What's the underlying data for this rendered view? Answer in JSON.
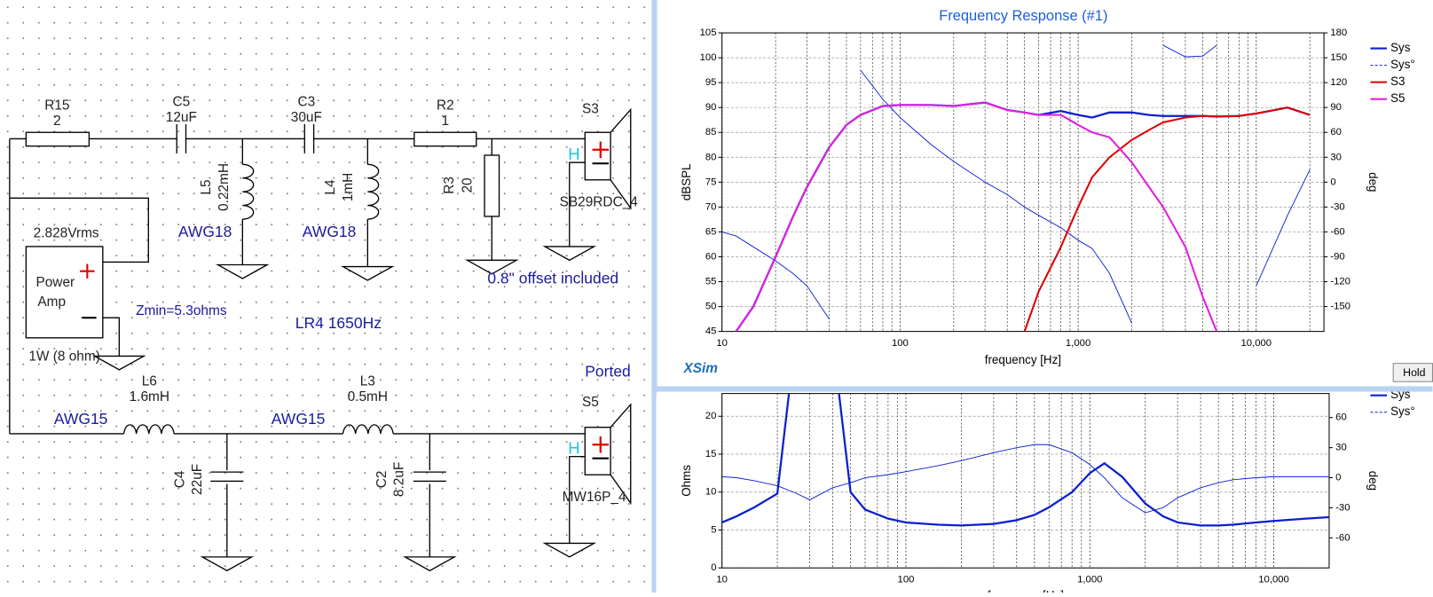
{
  "schematic": {
    "r15": {
      "ref": "R15",
      "value": "2"
    },
    "c5": {
      "ref": "C5",
      "value": "12uF"
    },
    "c3": {
      "ref": "C3",
      "value": "30uF"
    },
    "r2": {
      "ref": "R2",
      "value": "1"
    },
    "r3": {
      "ref": "R3",
      "value": "20"
    },
    "l5": {
      "ref": "L5",
      "value": "0.22mH",
      "wire": "AWG18"
    },
    "l4": {
      "ref": "L4",
      "value": "1mH",
      "wire": "AWG18"
    },
    "s3": {
      "ref": "S3",
      "model": "SB29RDC_4",
      "polarity": "H"
    },
    "offset_note": "0.8\" offset included",
    "amp": {
      "voltage": "2.828Vrms",
      "name_line1": "Power",
      "name_line2": "Amp",
      "rating": "1W (8 ohm)"
    },
    "zmin": "Zmin=5.3ohms",
    "crossover": "LR4 1650Hz",
    "enclosure": "Ported",
    "l6": {
      "ref": "L6",
      "value": "1.6mH",
      "wire": "AWG15"
    },
    "l3": {
      "ref": "L3",
      "value": "0.5mH",
      "wire": "AWG15"
    },
    "c4": {
      "ref": "C4",
      "value": "22uF"
    },
    "c2": {
      "ref": "C2",
      "value": "8.2uF"
    },
    "s5": {
      "ref": "S5",
      "model": "MW16P_4",
      "polarity": "H"
    }
  },
  "app_logo": "XSim",
  "hold_button": "Hold",
  "chart_data": [
    {
      "type": "line",
      "title": "Frequency Response (#1)",
      "x_label": "frequency [Hz]",
      "y_label": "dBSPL",
      "y2_label": "deg",
      "log_x": true,
      "grid": true,
      "x": [
        10,
        12,
        15,
        20,
        25,
        30,
        40,
        50,
        60,
        80,
        100,
        150,
        200,
        300,
        400,
        500,
        600,
        800,
        1000,
        1200,
        1500,
        2000,
        2500,
        3000,
        4000,
        5000,
        6000,
        8000,
        10000,
        15000,
        20000
      ],
      "xlim": [
        10,
        24000
      ],
      "xticks": [
        10,
        100,
        {
          "value": 1000,
          "label": "1,000"
        },
        {
          "value": 10000,
          "label": "10,000"
        }
      ],
      "xminorticks": [
        20,
        30,
        40,
        50,
        60,
        70,
        80,
        90,
        200,
        300,
        400,
        500,
        600,
        700,
        800,
        900,
        2000,
        3000,
        4000,
        5000,
        6000,
        7000,
        8000,
        9000,
        20000
      ],
      "ylim": [
        45,
        105
      ],
      "yticks": [
        45,
        50,
        55,
        60,
        65,
        70,
        75,
        80,
        85,
        90,
        95,
        100,
        105
      ],
      "y2lim": [
        -180,
        180
      ],
      "y2ticks": [
        -150,
        -120,
        -90,
        -60,
        -30,
        0,
        30,
        60,
        90,
        120,
        150,
        180
      ],
      "series": [
        {
          "name": "Sys",
          "color": "#0a1fd0",
          "width": 2.2,
          "values": [
            null,
            45,
            50,
            60,
            68,
            74,
            82,
            86.5,
            88.5,
            90.3,
            90.5,
            90.5,
            90.3,
            91,
            89.5,
            89,
            88.5,
            89.3,
            88.5,
            88,
            89,
            89,
            88.5,
            88.3,
            88.3,
            88.3,
            88.2,
            88.3,
            88.8,
            90,
            88.5
          ]
        },
        {
          "name": "Sys°",
          "color": "#0a1fd0",
          "width": 0.9,
          "legend_dashed": true,
          "axis": "y2",
          "values": [
            -60,
            -65,
            -78,
            -95,
            -110,
            -125,
            -165,
            null,
            135,
            100,
            78,
            45,
            25,
            0,
            -15,
            -30,
            -40,
            -55,
            -70,
            -80,
            -110,
            -170,
            null,
            165,
            151,
            152,
            165,
            null,
            -125,
            -40,
            15
          ]
        },
        {
          "name": "S3",
          "color": "#e00000",
          "width": 2,
          "values": [
            null,
            null,
            null,
            null,
            null,
            null,
            null,
            null,
            null,
            null,
            null,
            null,
            null,
            null,
            null,
            45,
            53,
            62,
            70,
            76,
            80,
            83.5,
            85.5,
            87,
            88,
            88.3,
            88.2,
            88.3,
            88.8,
            90,
            88.5
          ]
        },
        {
          "name": "S5",
          "color": "#e020e0",
          "width": 2,
          "values": [
            null,
            45,
            50,
            60,
            68,
            74,
            82,
            86.5,
            88.5,
            90.3,
            90.5,
            90.5,
            90.3,
            91,
            89.5,
            89,
            88.5,
            88.5,
            86.5,
            85,
            84,
            79,
            74,
            70,
            62,
            52,
            45,
            null,
            null,
            null,
            null
          ]
        }
      ]
    },
    {
      "type": "line",
      "x_label": "frequency [Hz]",
      "y_label": "Ohms",
      "y2_label": "deg",
      "log_x": true,
      "grid": true,
      "x": [
        10,
        12,
        15,
        20,
        25,
        30,
        40,
        50,
        60,
        80,
        100,
        150,
        200,
        300,
        400,
        500,
        600,
        800,
        1000,
        1200,
        1500,
        2000,
        2500,
        3000,
        4000,
        5000,
        6000,
        8000,
        10000,
        15000,
        20000
      ],
      "xlim": [
        10,
        20000
      ],
      "xticks": [
        10,
        100,
        {
          "value": 1000,
          "label": "1,000"
        },
        {
          "value": 10000,
          "label": "10,000"
        }
      ],
      "xminorticks": [
        20,
        30,
        40,
        50,
        60,
        70,
        80,
        90,
        200,
        300,
        400,
        500,
        600,
        700,
        800,
        900,
        2000,
        3000,
        4000,
        5000,
        6000,
        7000,
        8000,
        9000
      ],
      "ylim": [
        0,
        23
      ],
      "yticks": [
        0,
        5,
        10,
        15,
        20
      ],
      "y2lim": [
        -90,
        84
      ],
      "y2ticks": [
        -60,
        -30,
        0,
        30,
        60
      ],
      "series": [
        {
          "name": "Sys",
          "color": "#0a1fd0",
          "width": 2.2,
          "values": [
            6,
            6.8,
            8,
            9.8,
            30,
            40,
            30,
            10,
            7.7,
            6.5,
            6,
            5.7,
            5.6,
            5.8,
            6.3,
            7,
            8,
            10,
            12.5,
            13.8,
            12,
            8.5,
            6.8,
            6,
            5.6,
            5.6,
            5.7,
            6,
            6.2,
            6.5,
            6.7
          ]
        },
        {
          "name": "Sys°",
          "color": "#0a1fd0",
          "width": 0.9,
          "legend_dashed": true,
          "axis": "y2",
          "values": [
            1,
            0,
            -3,
            -8,
            -15,
            -22,
            -10,
            -5,
            0,
            3,
            6,
            12,
            17,
            25,
            30,
            33,
            33,
            25,
            13,
            0,
            -20,
            -35,
            -30,
            -20,
            -10,
            -5,
            -2,
            0,
            1,
            1,
            1
          ]
        }
      ]
    }
  ]
}
